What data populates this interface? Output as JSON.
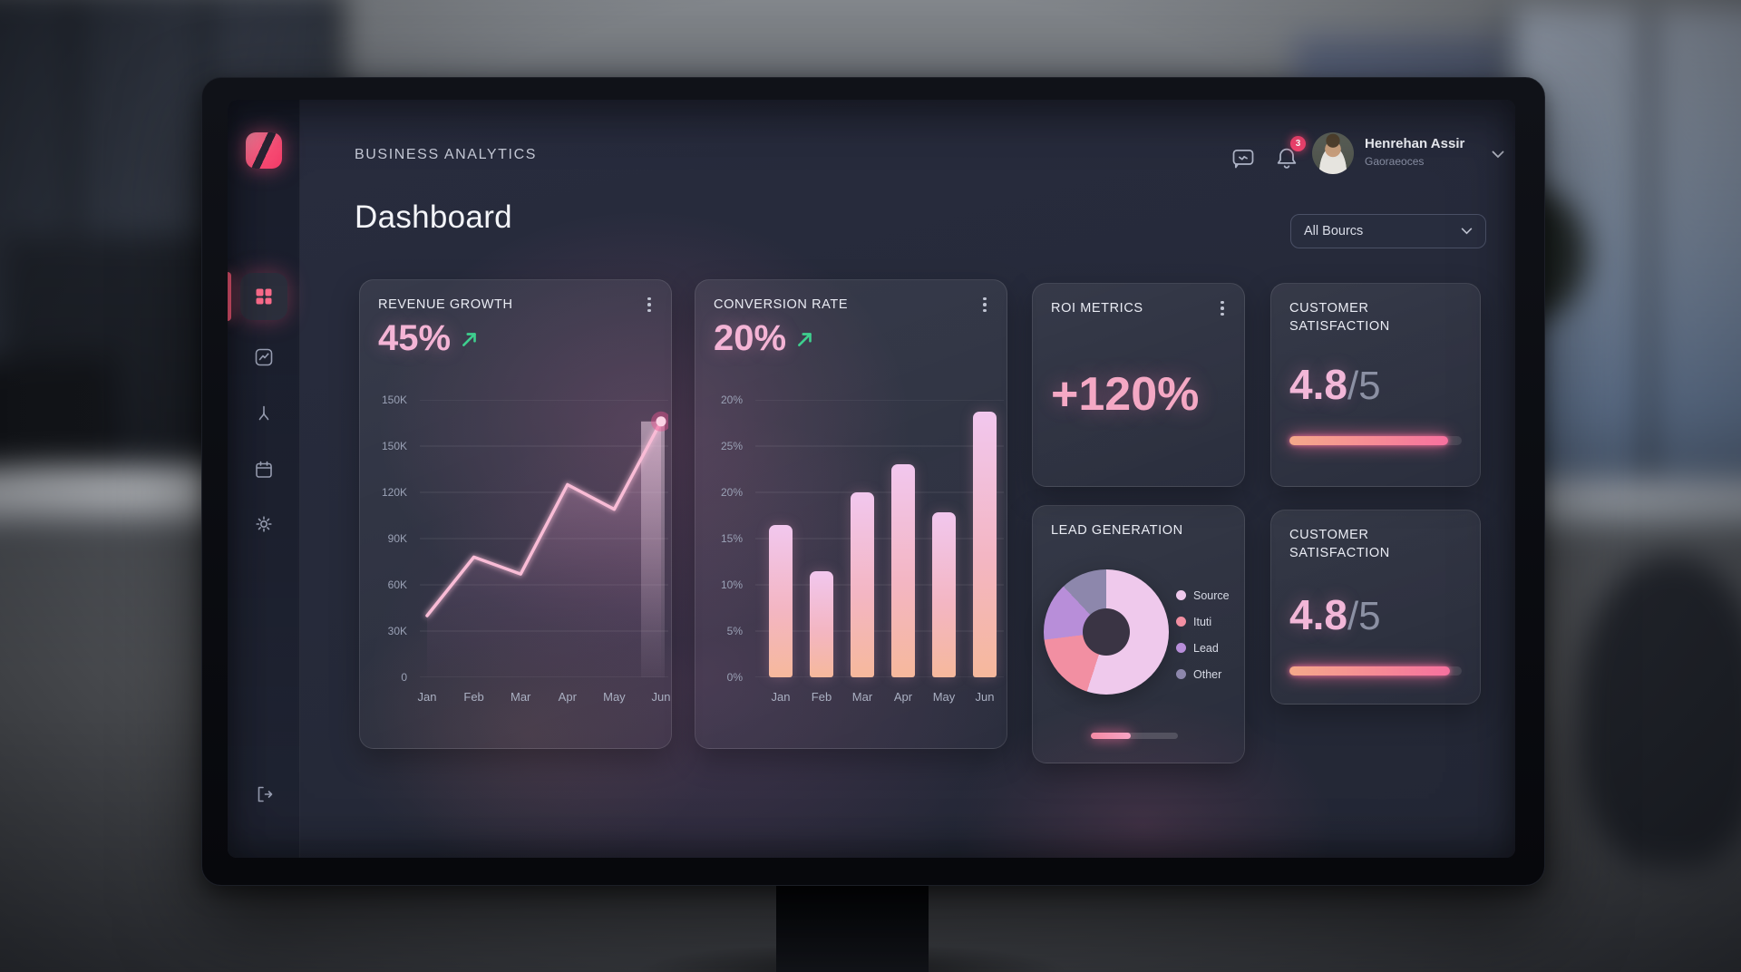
{
  "app": {
    "brand": "BUSINESS ANALYTICS",
    "page_title": "Dashboard"
  },
  "header": {
    "notifications_badge": "3",
    "user_name": "Henrehan Assir",
    "user_subtitle": "Gaoraeoces",
    "filter_value": "All Bourcs"
  },
  "sidebar": {
    "icons": [
      "logo-mark",
      "dashboard-grid-icon",
      "analytics-chart-icon",
      "route-icon",
      "calendar-icon",
      "settings-gear-icon",
      "logout-icon"
    ],
    "active_item": "dashboard"
  },
  "cards": {
    "revenue_growth": {
      "title": "REVENUE GROWTH",
      "value": "45%",
      "trend": "up"
    },
    "conversion_rate": {
      "title": "CONVERSION RATE",
      "value": "20%",
      "trend": "up"
    },
    "roi_metrics": {
      "title": "ROI METRICS",
      "value": "+120%"
    },
    "customer_satisfaction_top": {
      "title": "CUSTOMER SATISFACTION",
      "score": "4.8",
      "denominator": "/5",
      "progress_pct": 92
    },
    "lead_generation": {
      "title": "LEAD GENERATION",
      "footer_progress_pct": 46
    },
    "customer_satisfaction_bottom": {
      "title": "CUSTOMER SATISFACTION",
      "score": "4.8",
      "denominator": "/5",
      "progress_pct": 93
    }
  },
  "colors": {
    "accent_pink": "#ff5f7e",
    "value_pink": "#f4b4d5",
    "positive_green": "#3ecf8e"
  },
  "chart_data": [
    {
      "id": "revenue_line",
      "type": "line",
      "title": "REVENUE GROWTH",
      "x": [
        "Jan",
        "Feb",
        "Mar",
        "Apr",
        "May",
        "Jun"
      ],
      "values": [
        40,
        78,
        67,
        125,
        109,
        166
      ],
      "y_ticks_top_to_bottom": [
        "150K",
        "150K",
        "120K",
        "90K",
        "60K",
        "30K",
        "0"
      ],
      "ylim": [
        0,
        180
      ],
      "grid": true,
      "line_color": "#f9bcd6",
      "area_top_color": "rgba(242,178,214,0.42)",
      "end_dot": true,
      "legend_position": "none"
    },
    {
      "id": "conversion_bars",
      "type": "bar",
      "title": "CONVERSION RATE",
      "x": [
        "Jan",
        "Feb",
        "Mar",
        "Apr",
        "May",
        "Jun"
      ],
      "values": [
        16.5,
        11.5,
        20,
        23,
        17.8,
        28.7
      ],
      "y_ticks_top_to_bottom": [
        "20%",
        "25%",
        "20%",
        "15%",
        "10%",
        "5%",
        "0%"
      ],
      "ylim": [
        0,
        30
      ],
      "grid": true,
      "legend_position": "none"
    },
    {
      "id": "lead_donut",
      "type": "pie",
      "title": "LEAD GENERATION",
      "donut": true,
      "slices": [
        {
          "label": "Source",
          "value": 55,
          "color": "#efc9ec"
        },
        {
          "label": "Ituti",
          "value": 18,
          "color": "#f28fa2"
        },
        {
          "label": "Lead",
          "value": 15,
          "color": "#b88ed9"
        },
        {
          "label": "Other",
          "value": 12,
          "color": "#8d87ac"
        }
      ],
      "legend_position": "right"
    }
  ]
}
